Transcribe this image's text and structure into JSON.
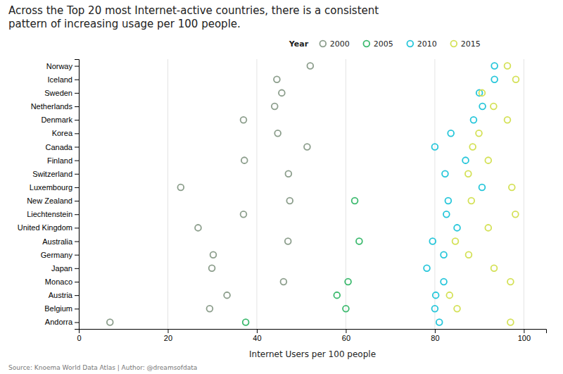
{
  "chart_data": {
    "type": "dot",
    "orientation": "horizontal",
    "title": "Across the Top 20 most Internet-active countries, there is a consistent\npattern of increasing usage per 100 people.",
    "xlabel": "Internet Users per 100 people",
    "source": "Source: Knoema World Data Atlas | Author: @dreamsofdata",
    "legend_title": "Year",
    "legend": "top",
    "grid": true,
    "marker": "circle",
    "categories": [
      "Norway",
      "Iceland",
      "Sweden",
      "Netherlands",
      "Denmark",
      "Korea",
      "Canada",
      "Finland",
      "Switzerland",
      "Luxembourg",
      "New Zealand",
      "Liechtenstein",
      "United Kingdom",
      "Australia",
      "Germany",
      "Japan",
      "Monaco",
      "Austria",
      "Belgium",
      "Andorra"
    ],
    "series": [
      {
        "name": "2000",
        "color": "#8c9e8c",
        "values": [
          52.0,
          44.5,
          45.6,
          44.0,
          37.0,
          44.7,
          51.3,
          37.2,
          47.1,
          22.9,
          47.4,
          37.0,
          26.8,
          47.0,
          30.2,
          29.9,
          46.0,
          33.3,
          29.4,
          7.0
        ]
      },
      {
        "name": "2005",
        "color": "#3dba6f",
        "values": [
          null,
          null,
          null,
          null,
          null,
          null,
          null,
          null,
          null,
          null,
          62.0,
          null,
          null,
          63.0,
          null,
          null,
          60.5,
          58.0,
          60.0,
          37.5
        ]
      },
      {
        "name": "2010",
        "color": "#26c6da",
        "values": [
          93.4,
          93.4,
          90.0,
          90.7,
          88.7,
          83.6,
          80.0,
          86.9,
          82.3,
          90.6,
          83.0,
          82.6,
          85.0,
          79.5,
          82.0,
          78.2,
          82.0,
          80.2,
          80.0,
          81.0
        ]
      },
      {
        "name": "2015",
        "color": "#d4e157",
        "values": [
          96.3,
          98.2,
          90.6,
          93.2,
          96.3,
          89.9,
          88.5,
          92.0,
          87.5,
          97.3,
          88.2,
          98.1,
          92.0,
          84.6,
          87.6,
          93.3,
          97.0,
          83.3,
          85.0,
          97.0
        ]
      }
    ],
    "xlim": [
      0,
      105
    ],
    "xticks": [
      0,
      20,
      40,
      60,
      80,
      100
    ]
  }
}
